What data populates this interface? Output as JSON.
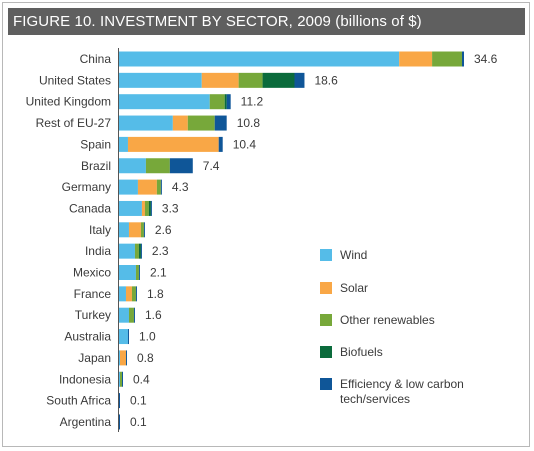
{
  "chart_data": {
    "type": "bar",
    "orientation": "horizontal",
    "stacked": true,
    "title": "FIGURE 10. INVESTMENT BY SECTOR, 2009 (billions of $)",
    "categories": [
      "China",
      "United States",
      "United Kingdom",
      "Rest of EU-27",
      "Spain",
      "Brazil",
      "Germany",
      "Canada",
      "Italy",
      "India",
      "Mexico",
      "France",
      "Turkey",
      "Australia",
      "Japan",
      "Indonesia",
      "South Africa",
      "Argentina"
    ],
    "totals": [
      "34.6",
      "18.6",
      "11.2",
      "10.8",
      "10.4",
      "7.4",
      "4.3",
      "3.3",
      "2.6",
      "2.3",
      "2.1",
      "1.8",
      "1.6",
      "1.0",
      "0.8",
      "0.4",
      "0.1",
      "0.1"
    ],
    "series": [
      {
        "name": "Wind",
        "color": "#55bce8",
        "values": [
          28.1,
          8.3,
          9.1,
          5.4,
          0.9,
          2.7,
          1.9,
          2.3,
          1.0,
          1.6,
          1.7,
          0.7,
          1.0,
          0.9,
          0.1,
          0.1,
          0.0,
          0.0
        ]
      },
      {
        "name": "Solar",
        "color": "#f9a746",
        "values": [
          3.3,
          3.7,
          0.0,
          1.5,
          9.1,
          0.0,
          1.9,
          0.3,
          1.2,
          0.0,
          0.0,
          0.6,
          0.0,
          0.0,
          0.6,
          0.0,
          0.0,
          0.0
        ]
      },
      {
        "name": "Other renewables",
        "color": "#77a83a",
        "values": [
          3.0,
          2.4,
          1.5,
          2.7,
          0.0,
          2.4,
          0.4,
          0.4,
          0.3,
          0.4,
          0.3,
          0.4,
          0.5,
          0.0,
          0.0,
          0.2,
          0.0,
          0.0
        ]
      },
      {
        "name": "Biofuels",
        "color": "#0b6b3c",
        "values": [
          0.0,
          3.2,
          0.2,
          0.0,
          0.0,
          0.0,
          0.0,
          0.2,
          0.0,
          0.2,
          0.0,
          0.0,
          0.0,
          0.0,
          0.0,
          0.0,
          0.0,
          0.0
        ]
      },
      {
        "name": "Efficiency & low carbon tech/services",
        "color": "#0f5698",
        "values": [
          0.2,
          1.0,
          0.4,
          1.2,
          0.4,
          2.3,
          0.1,
          0.1,
          0.1,
          0.1,
          0.1,
          0.1,
          0.1,
          0.1,
          0.1,
          0.1,
          0.1,
          0.1
        ]
      }
    ],
    "xlim": [
      0,
      34.6
    ],
    "grid": false,
    "legend_position": "lower-right"
  }
}
